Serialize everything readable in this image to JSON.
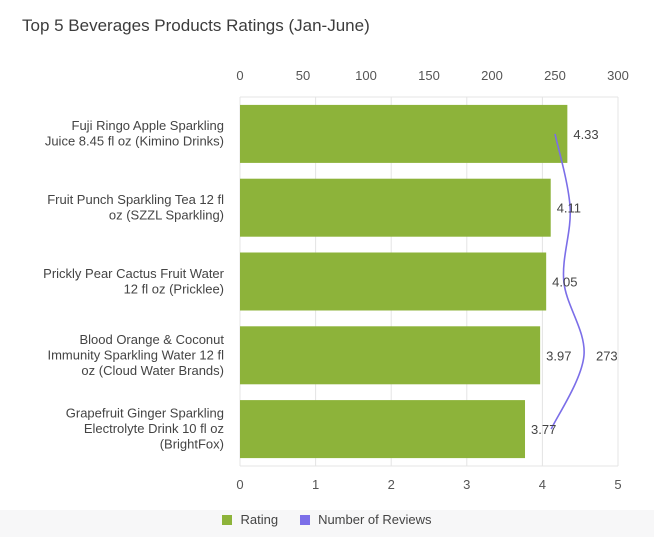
{
  "title": "Top 5 Beverages Products Ratings (Jan-June)",
  "colors": {
    "rating": "#8db33a",
    "reviews": "#7b6ee8",
    "grid": "#e4e4e4"
  },
  "legend": {
    "rating": "Rating",
    "reviews": "Number of Reviews"
  },
  "chart_data": {
    "type": "bar",
    "orientation": "horizontal",
    "title": "Top 5 Beverages Products Ratings (Jan-June)",
    "categories": [
      [
        "Fuji Ringo Apple Sparkling",
        "Juice 8.45 fl oz (Kimino Drinks)"
      ],
      [
        "Fruit Punch Sparkling Tea 12 fl",
        "oz (SZZL Sparkling)"
      ],
      [
        "Prickly Pear Cactus Fruit Water",
        "12 fl oz (Pricklee)"
      ],
      [
        "Blood Orange & Coconut",
        "Immunity Sparkling Water 12 fl",
        "oz (Cloud Water Brands)"
      ],
      [
        "Grapefruit Ginger Sparkling",
        "Electrolyte Drink 10 fl oz",
        "(BrightFox)"
      ]
    ],
    "series": [
      {
        "name": "Rating",
        "type": "bar",
        "axis": "bottom",
        "values": [
          4.33,
          4.11,
          4.05,
          3.97,
          3.77
        ],
        "labels": [
          "4.33",
          "4.11",
          "4.05",
          "3.97",
          "3.77"
        ]
      },
      {
        "name": "Number of Reviews",
        "type": "line",
        "axis": "top",
        "values": [
          250,
          262,
          257,
          273,
          247
        ],
        "labels": [
          "",
          "",
          "",
          "273",
          ""
        ]
      }
    ],
    "x_bottom": {
      "min": 0,
      "max": 5,
      "ticks": [
        "0",
        "1",
        "2",
        "3",
        "4",
        "5"
      ]
    },
    "x_top": {
      "min": 0,
      "max": 300,
      "ticks": [
        "0",
        "50",
        "100",
        "150",
        "200",
        "250",
        "300"
      ]
    },
    "grid": true,
    "legend_position": "bottom-center"
  }
}
